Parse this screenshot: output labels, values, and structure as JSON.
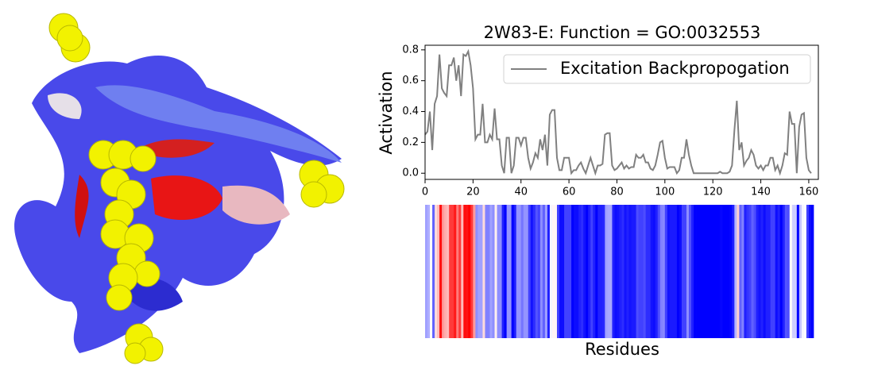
{
  "chart_data": {
    "type": "line",
    "title": "2W83-E: Function = GO:0032553",
    "ylabel": "Activation",
    "xlabel": "Residues",
    "xlim": [
      0,
      164
    ],
    "ylim": [
      -0.04,
      0.83
    ],
    "xticks": [
      0,
      20,
      40,
      60,
      80,
      100,
      120,
      140,
      160
    ],
    "yticks": [
      {
        "value": 0,
        "label": "0.0"
      },
      0.2,
      0.4,
      0.6,
      0.8
    ],
    "legend": "upper right",
    "colormap": "bwr",
    "series": [
      {
        "name": "Excitation Backpropogation",
        "color": "#808080",
        "values": [
          0.25,
          0.27,
          0.4,
          0.15,
          0.45,
          0.5,
          0.77,
          0.55,
          0.52,
          0.5,
          0.7,
          0.7,
          0.75,
          0.6,
          0.7,
          0.5,
          0.77,
          0.76,
          0.79,
          0.7,
          0.55,
          0.22,
          0.25,
          0.25,
          0.45,
          0.2,
          0.2,
          0.25,
          0.22,
          0.42,
          0.22,
          0.22,
          0.05,
          0.0,
          0.23,
          0.23,
          0.0,
          0.05,
          0.23,
          0.23,
          0.18,
          0.23,
          0.23,
          0.1,
          0.03,
          0.07,
          0.13,
          0.1,
          0.22,
          0.15,
          0.25,
          0.05,
          0.38,
          0.41,
          0.41,
          0.1,
          0.02,
          0.02,
          0.1,
          0.1,
          0.1,
          0.0,
          0.02,
          0.02,
          0.05,
          0.07,
          0.03,
          0.0,
          0.05,
          0.1,
          0.05,
          0.0,
          0.05,
          0.05,
          0.06,
          0.25,
          0.26,
          0.26,
          0.05,
          0.02,
          0.03,
          0.05,
          0.07,
          0.03,
          0.05,
          0.03,
          0.04,
          0.04,
          0.12,
          0.1,
          0.1,
          0.12,
          0.07,
          0.07,
          0.03,
          0.02,
          0.05,
          0.12,
          0.2,
          0.21,
          0.1,
          0.03,
          0.04,
          0.04,
          0.04,
          0.0,
          0.02,
          0.1,
          0.1,
          0.22,
          0.12,
          0.05,
          0.0,
          0.0,
          0.0,
          0.0,
          0.0,
          0.0,
          0.0,
          0.0,
          0.0,
          0.0,
          0.0,
          0.01,
          0.0,
          0.0,
          0.0,
          0.01,
          0.05,
          0.28,
          0.47,
          0.15,
          0.2,
          0.05,
          0.08,
          0.1,
          0.15,
          0.12,
          0.05,
          0.03,
          0.05,
          0.02,
          0.05,
          0.05,
          0.1,
          0.1,
          0.02,
          0.05,
          0.0,
          0.05,
          0.13,
          0.12,
          0.4,
          0.32,
          0.32,
          0.0,
          0.3,
          0.38,
          0.39,
          0.1,
          0.02,
          0.0
        ]
      }
    ]
  }
}
